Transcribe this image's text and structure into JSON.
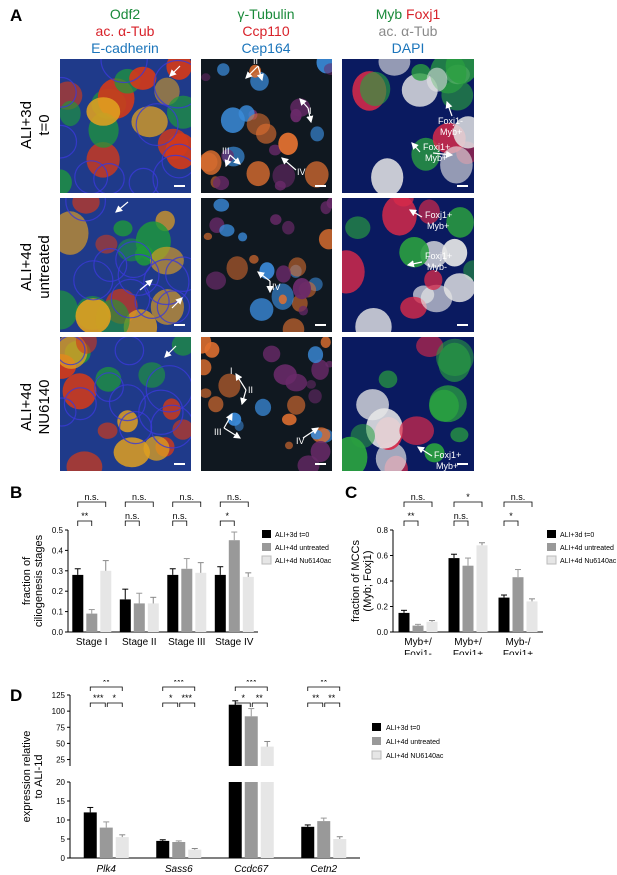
{
  "panel_a": {
    "label": "A",
    "columns": [
      {
        "lines": [
          {
            "text": "Odf2",
            "color": "green"
          },
          {
            "text": "ac. α-Tub",
            "color": "red"
          },
          {
            "text": "E-cadherin",
            "color": "blue"
          }
        ]
      },
      {
        "lines": [
          {
            "text": "γ-Tubulin",
            "color": "green"
          },
          {
            "text": "Ccp110",
            "color": "red"
          },
          {
            "text": "Cep164",
            "color": "blue"
          }
        ]
      },
      {
        "lines": [
          {
            "parts": [
              {
                "text": "Myb ",
                "color": "green"
              },
              {
                "text": "Foxj1",
                "color": "red"
              }
            ]
          },
          {
            "text": "ac. α-Tub",
            "color": "gray"
          },
          {
            "text": "DAPI",
            "color": "blue"
          }
        ]
      }
    ],
    "rows": [
      {
        "line1": "ALI+3d",
        "line2": "t=0"
      },
      {
        "line1": "ALI+4d",
        "line2": "untreated"
      },
      {
        "line1": "ALI+4d",
        "line2": "NU6140"
      }
    ],
    "annotations": {
      "r1c2": [
        "II",
        "I",
        "III",
        "IV"
      ],
      "r1c3": [
        "Foxj1-",
        "Myb+",
        "Foxj1+",
        "Myb+"
      ],
      "r2c2": [
        "IV"
      ],
      "r2c3": [
        "Foxj1+",
        "Myb+",
        "Foxj1+",
        "Myb-"
      ],
      "r3c2": [
        "I",
        "II",
        "III",
        "IV"
      ],
      "r3c3": [
        "Foxj1+",
        "Myb+"
      ]
    }
  },
  "panel_b": {
    "label": "B",
    "chart_data": {
      "type": "bar",
      "categories": [
        "Stage I",
        "Stage II",
        "Stage III",
        "Stage IV"
      ],
      "series": [
        {
          "name": "ALI+3d t=0",
          "color": "#000000",
          "values": [
            0.28,
            0.16,
            0.28,
            0.28
          ],
          "errors": [
            0.03,
            0.05,
            0.03,
            0.04
          ]
        },
        {
          "name": "ALI+4d untreated",
          "color": "#999999",
          "values": [
            0.09,
            0.14,
            0.31,
            0.45
          ],
          "errors": [
            0.02,
            0.05,
            0.05,
            0.04
          ]
        },
        {
          "name": "ALI+4d Nu6140ac",
          "color": "#e6e6e6",
          "values": [
            0.3,
            0.14,
            0.29,
            0.27
          ],
          "errors": [
            0.05,
            0.03,
            0.05,
            0.02
          ]
        }
      ],
      "ylabel": "fraction of ciliogenesis stages",
      "ylim": [
        0,
        0.5
      ],
      "yticks": [
        "0.0",
        "0.1",
        "0.2",
        "0.3",
        "0.4",
        "0.5"
      ],
      "significance": [
        {
          "top": "n.s.",
          "bottom": "**"
        },
        {
          "top": "n.s.",
          "bottom": "n.s."
        },
        {
          "top": "n.s.",
          "bottom": "n.s."
        },
        {
          "top": "n.s.",
          "bottom": "*"
        }
      ]
    }
  },
  "panel_c": {
    "label": "C",
    "chart_data": {
      "type": "bar",
      "categories": [
        [
          "Myb+/",
          "Foxj1-"
        ],
        [
          "Myb+/",
          "Foxj1+"
        ],
        [
          "Myb-/",
          "Foxj1+"
        ]
      ],
      "series": [
        {
          "name": "ALI+3d t=0",
          "color": "#000000",
          "values": [
            0.15,
            0.58,
            0.27
          ],
          "errors": [
            0.02,
            0.03,
            0.02
          ]
        },
        {
          "name": "ALI+4d untreated",
          "color": "#999999",
          "values": [
            0.05,
            0.52,
            0.43
          ],
          "errors": [
            0.01,
            0.06,
            0.06
          ]
        },
        {
          "name": "ALI+4d Nu6140ac",
          "color": "#e6e6e6",
          "values": [
            0.08,
            0.68,
            0.24
          ],
          "errors": [
            0.01,
            0.02,
            0.02
          ]
        }
      ],
      "ylabel": "fraction of MCCs (Myb; Foxj1)",
      "ylim": [
        0,
        0.8
      ],
      "yticks": [
        "0.0",
        "0.2",
        "0.4",
        "0.6",
        "0.8"
      ],
      "significance": [
        {
          "top": "n.s.",
          "bottom": "**"
        },
        {
          "top": "*",
          "bottom": "n.s."
        },
        {
          "top": "n.s.",
          "bottom": "*"
        }
      ]
    }
  },
  "panel_d": {
    "label": "D",
    "chart_data": {
      "type": "bar",
      "categories": [
        "Plk4",
        "Sass6",
        "Ccdc67",
        "Cetn2"
      ],
      "series": [
        {
          "name": "ALI+3d t=0",
          "color": "#000000",
          "values": [
            12,
            4.5,
            110,
            8.2
          ],
          "errors": [
            1.3,
            0.3,
            6,
            0.5
          ]
        },
        {
          "name": "ALI+4d untreated",
          "color": "#999999",
          "values": [
            8,
            4.2,
            92,
            9.7
          ],
          "errors": [
            1.5,
            0.3,
            12,
            0.8
          ]
        },
        {
          "name": "ALI+4d NU6140ac",
          "color": "#e6e6e6",
          "values": [
            5.5,
            2.2,
            45,
            5
          ],
          "errors": [
            0.6,
            0.3,
            8,
            0.6
          ]
        }
      ],
      "ylabel": "expression relative to ALI-1d",
      "axis_break": {
        "lower": [
          0,
          20
        ],
        "upper": [
          15,
          125
        ]
      },
      "yticks_lower": [
        "0",
        "5",
        "10",
        "15",
        "20"
      ],
      "yticks_upper": [
        "25",
        "50",
        "75",
        "100",
        "125"
      ],
      "significance": [
        {
          "top": "**",
          "left": "***",
          "right": "*"
        },
        {
          "top": "***",
          "left": "*",
          "right": "***"
        },
        {
          "top": "***",
          "left": "*",
          "right": "**"
        },
        {
          "top": "**",
          "left": "**",
          "right": "**"
        }
      ]
    }
  }
}
